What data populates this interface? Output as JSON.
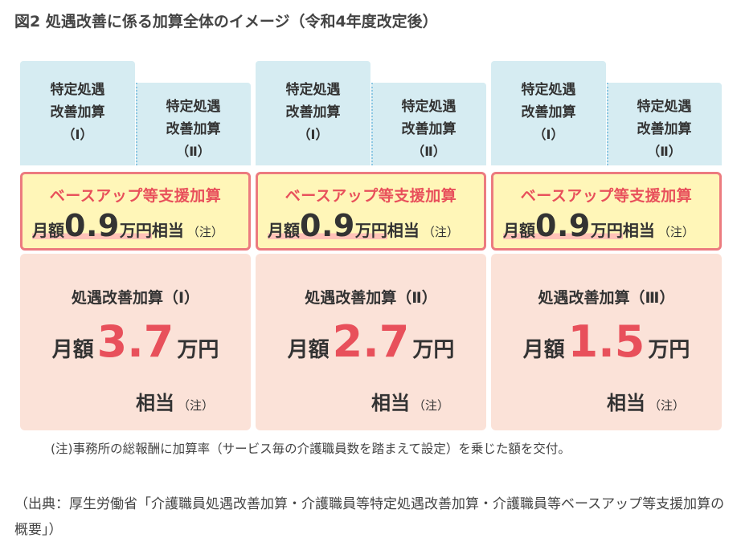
{
  "title": "図2 処遇改善に係る加算全体のイメージ（令和4年度改定後）",
  "columns": [
    {
      "tab_main": [
        "特定処遇",
        "改善加算",
        "（Ⅰ）"
      ],
      "tab_sub": [
        "特定処遇",
        "改善加算",
        "（Ⅱ）"
      ],
      "baseup_title": "ベースアップ等支援加算",
      "baseup_pre": "月額",
      "baseup_num": "0.9",
      "baseup_unit": "万円",
      "baseup_post": "相当",
      "baseup_note": "（注）",
      "kaizen_title": "処遇改善加算（Ⅰ）",
      "kaizen_pre": "月額",
      "kaizen_num": "3.7",
      "kaizen_unit": "万円",
      "kaizen_sub": "相当",
      "kaizen_note": "（注）"
    },
    {
      "tab_main": [
        "特定処遇",
        "改善加算",
        "（Ⅰ）"
      ],
      "tab_sub": [
        "特定処遇",
        "改善加算",
        "（Ⅱ）"
      ],
      "baseup_title": "ベースアップ等支援加算",
      "baseup_pre": "月額",
      "baseup_num": "0.9",
      "baseup_unit": "万円",
      "baseup_post": "相当",
      "baseup_note": "（注）",
      "kaizen_title": "処遇改善加算（Ⅱ）",
      "kaizen_pre": "月額",
      "kaizen_num": "2.7",
      "kaizen_unit": "万円",
      "kaizen_sub": "相当",
      "kaizen_note": "（注）"
    },
    {
      "tab_main": [
        "特定処遇",
        "改善加算",
        "（Ⅰ）"
      ],
      "tab_sub": [
        "特定処遇",
        "改善加算",
        "（Ⅱ）"
      ],
      "baseup_title": "ベースアップ等支援加算",
      "baseup_pre": "月額",
      "baseup_num": "0.9",
      "baseup_unit": "万円",
      "baseup_post": "相当",
      "baseup_note": "（注）",
      "kaizen_title": "処遇改善加算（Ⅲ）",
      "kaizen_pre": "月額",
      "kaizen_num": "1.5",
      "kaizen_unit": "万円",
      "kaizen_sub": "相当",
      "kaizen_note": "（注）"
    }
  ],
  "note": "(注)事務所の総報酬に加算率（サービス毎の介護職員数を踏まえて設定）を乗じた額を交付。",
  "source": "（出典：厚生労働省「介護職員処遇改善加算・介護職員等特定処遇改善加算・介護職員等ベースアップ等支援加算の概要」）",
  "colors": {
    "tab_bg": "#d6ecf2",
    "baseup_bg": "#fff6b8",
    "baseup_border": "#ec7b7f",
    "accent_red": "#e8505b",
    "kaizen_bg": "#fbe2d8",
    "highlight": "#ffc2b8"
  }
}
